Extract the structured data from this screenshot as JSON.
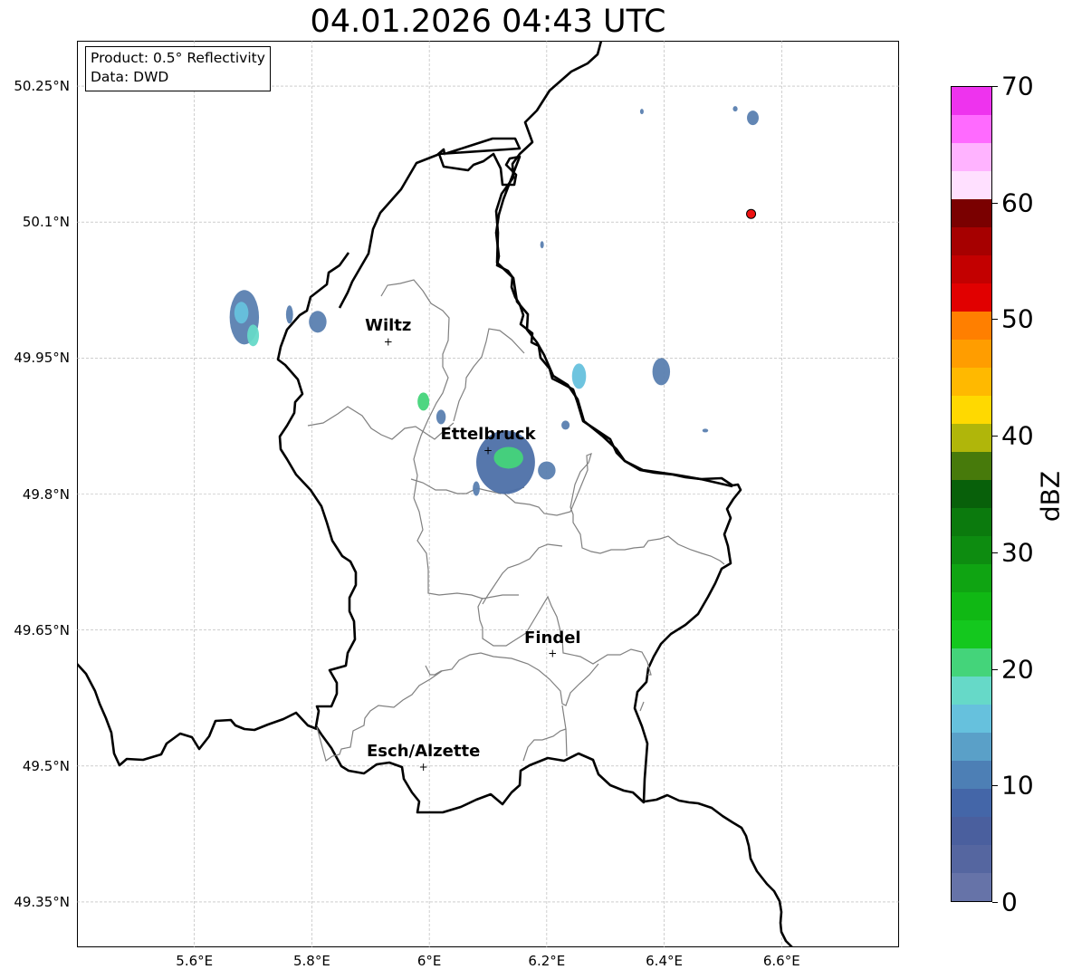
{
  "title": "04.01.2026 04:43 UTC",
  "info_box": {
    "line1": "Product: 0.5° Reflectivity",
    "line2": "Data: DWD"
  },
  "axes": {
    "lat_ticks": [
      {
        "label": "50.25°N",
        "value": 50.25
      },
      {
        "label": "50.1°N",
        "value": 50.1
      },
      {
        "label": "49.95°N",
        "value": 49.95
      },
      {
        "label": "49.8°N",
        "value": 49.8
      },
      {
        "label": "49.65°N",
        "value": 49.65
      },
      {
        "label": "49.5°N",
        "value": 49.5
      },
      {
        "label": "49.35°N",
        "value": 49.35
      }
    ],
    "lon_ticks": [
      {
        "label": "5.6°E",
        "value": 5.6
      },
      {
        "label": "5.8°E",
        "value": 5.8
      },
      {
        "label": "6°E",
        "value": 6.0
      },
      {
        "label": "6.2°E",
        "value": 6.2
      },
      {
        "label": "6.4°E",
        "value": 6.4
      },
      {
        "label": "6.6°E",
        "value": 6.6
      }
    ],
    "lon_range": [
      5.4,
      6.8
    ],
    "lat_range": [
      49.3,
      50.3
    ],
    "grid": true
  },
  "cities": [
    {
      "name": "Wiltz",
      "lon": 5.93,
      "lat": 49.968
    },
    {
      "name": "Ettelbruck",
      "lon": 6.1,
      "lat": 49.848
    },
    {
      "name": "Findel",
      "lon": 6.21,
      "lat": 49.624
    },
    {
      "name": "Esch/Alzette",
      "lon": 5.99,
      "lat": 49.499
    }
  ],
  "radar_site": {
    "lon": 6.548,
    "lat": 50.109,
    "color": "#ee1111"
  },
  "colorbar": {
    "label": "dBZ",
    "min": 0,
    "max": 70,
    "step": 2.5,
    "tick_labels": [
      "0",
      "10",
      "20",
      "30",
      "40",
      "50",
      "60",
      "70"
    ],
    "colors": [
      "#6673a8",
      "#5566a0",
      "#4a5f9e",
      "#4466a8",
      "#4d7fb5",
      "#5aa0c8",
      "#66c1dd",
      "#66d9c8",
      "#44d47a",
      "#14c81e",
      "#10b814",
      "#0fa412",
      "#0d8c10",
      "#0b7a0d",
      "#08600a",
      "#477a0b",
      "#b0b60a",
      "#ffd900",
      "#ffb900",
      "#ff9d00",
      "#ff7f00",
      "#e10000",
      "#c30000",
      "#a60000",
      "#7a0000",
      "#ffe0ff",
      "#ffb3ff",
      "#ff6aff",
      "#ee33ee"
    ]
  },
  "echoes": [
    {
      "lon": 5.685,
      "lat": 49.995,
      "r_lon": 0.025,
      "r_lat": 0.03,
      "color": "#5a80b0"
    },
    {
      "lon": 5.68,
      "lat": 50.0,
      "r_lon": 0.012,
      "r_lat": 0.012,
      "color": "#66c1dd"
    },
    {
      "lon": 5.7,
      "lat": 49.975,
      "r_lon": 0.01,
      "r_lat": 0.012,
      "color": "#66d9c8"
    },
    {
      "lon": 5.762,
      "lat": 49.998,
      "r_lon": 0.006,
      "r_lat": 0.01,
      "color": "#5a80b0"
    },
    {
      "lon": 5.81,
      "lat": 49.99,
      "r_lon": 0.015,
      "r_lat": 0.012,
      "color": "#5a80b0"
    },
    {
      "lon": 5.99,
      "lat": 49.902,
      "r_lon": 0.01,
      "r_lat": 0.01,
      "color": "#44d47a"
    },
    {
      "lon": 6.02,
      "lat": 49.885,
      "r_lon": 0.008,
      "r_lat": 0.008,
      "color": "#5a80b0"
    },
    {
      "lon": 6.13,
      "lat": 49.835,
      "r_lon": 0.05,
      "r_lat": 0.035,
      "color": "#4d70a8"
    },
    {
      "lon": 6.135,
      "lat": 49.84,
      "r_lon": 0.025,
      "r_lat": 0.012,
      "color": "#44d47a"
    },
    {
      "lon": 6.2,
      "lat": 49.826,
      "r_lon": 0.015,
      "r_lat": 0.01,
      "color": "#5a80b0"
    },
    {
      "lon": 6.08,
      "lat": 49.806,
      "r_lon": 0.006,
      "r_lat": 0.008,
      "color": "#5a80b0"
    },
    {
      "lon": 6.255,
      "lat": 49.93,
      "r_lon": 0.012,
      "r_lat": 0.014,
      "color": "#66c1dd"
    },
    {
      "lon": 6.395,
      "lat": 49.935,
      "r_lon": 0.015,
      "r_lat": 0.015,
      "color": "#5a80b0"
    },
    {
      "lon": 6.551,
      "lat": 50.215,
      "r_lon": 0.01,
      "r_lat": 0.008,
      "color": "#5a80b0"
    },
    {
      "lon": 6.521,
      "lat": 50.225,
      "r_lon": 0.004,
      "r_lat": 0.003,
      "color": "#5a80b0"
    },
    {
      "lon": 6.362,
      "lat": 50.222,
      "r_lon": 0.003,
      "r_lat": 0.003,
      "color": "#5a80b0"
    },
    {
      "lon": 6.192,
      "lat": 50.075,
      "r_lon": 0.002,
      "r_lat": 0.004,
      "color": "#5a80b0"
    },
    {
      "lon": 6.47,
      "lat": 49.87,
      "r_lon": 0.005,
      "r_lat": 0.002,
      "color": "#5a80b0"
    },
    {
      "lon": 6.232,
      "lat": 49.876,
      "r_lon": 0.007,
      "r_lat": 0.005,
      "color": "#5a80b0"
    }
  ]
}
